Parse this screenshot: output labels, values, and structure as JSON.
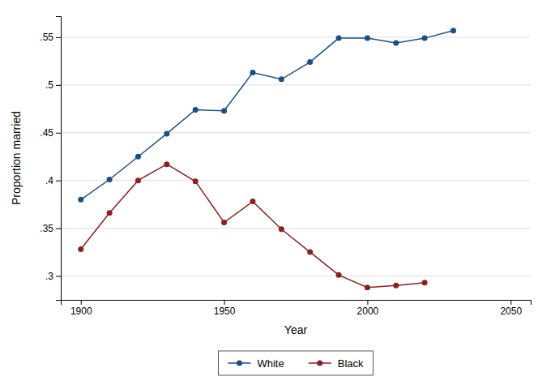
{
  "chart_data": {
    "type": "line",
    "xlabel": "Year",
    "ylabel": "Proportion married",
    "x": [
      1900,
      1910,
      1920,
      1930,
      1940,
      1950,
      1960,
      1970,
      1980,
      1990,
      2000,
      2010,
      2020,
      2030
    ],
    "series": [
      {
        "name": "White",
        "color": "#1b4f8a",
        "values": [
          0.38,
          0.401,
          0.425,
          0.449,
          0.474,
          0.473,
          0.513,
          0.506,
          0.524,
          0.549,
          0.549,
          0.544,
          0.549,
          0.557
        ]
      },
      {
        "name": "Black",
        "color": "#8b2020",
        "values": [
          0.328,
          0.366,
          0.4,
          0.417,
          0.399,
          0.356,
          0.378,
          0.349,
          0.325,
          0.301,
          0.288,
          0.29,
          0.293,
          null
        ]
      }
    ],
    "xlim": [
      1893,
      2057
    ],
    "ylim": [
      0.275,
      0.572
    ],
    "xticks": [
      1900,
      1950,
      2000,
      2050
    ],
    "yticks": [
      {
        "value": 0.3,
        "label": ".3"
      },
      {
        "value": 0.35,
        "label": ".35"
      },
      {
        "value": 0.4,
        "label": ".4"
      },
      {
        "value": 0.45,
        "label": ".45"
      },
      {
        "value": 0.5,
        "label": ".5"
      },
      {
        "value": 0.55,
        "label": ".55"
      }
    ],
    "grid": true,
    "legend": "bottom",
    "marker": "circle"
  }
}
